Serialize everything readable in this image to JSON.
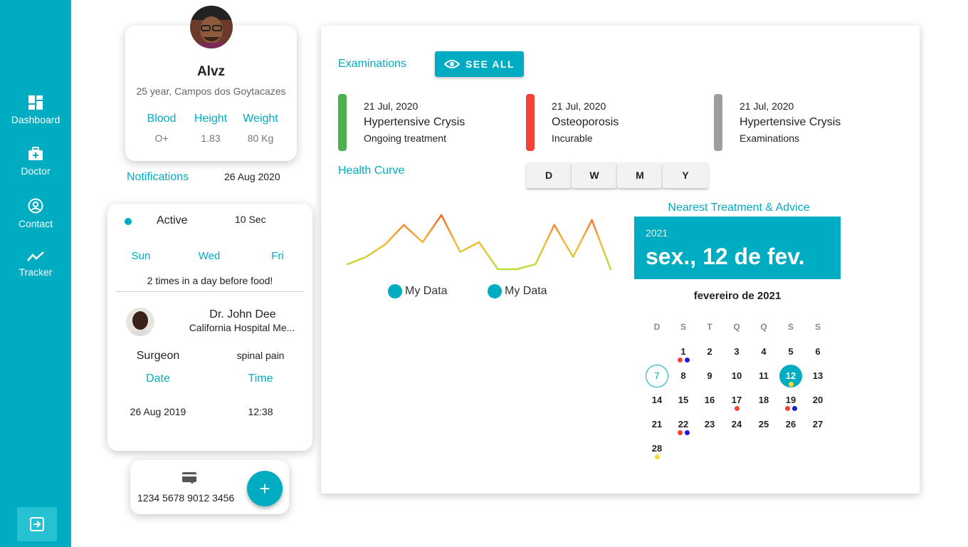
{
  "nav": {
    "dashboard": "Dashboard",
    "doctor": "Doctor",
    "contact": "Contact",
    "tracker": "Tracker"
  },
  "profile": {
    "name": "Alvz",
    "subtitle": "25 year, Campos dos Goytacazes",
    "blood_label": "Blood",
    "blood_value": "O+",
    "height_label": "Height",
    "height_value": "1.83",
    "weight_label": "Weight",
    "weight_value": "80 Kg"
  },
  "notifications": {
    "label": "Notifications",
    "date": "26 Aug 2020"
  },
  "appointment": {
    "status": "Active",
    "time_ago": "10 Sec",
    "days": [
      "Sun",
      "Wed",
      "Fri"
    ],
    "instruction": "2 times in a day before food!",
    "doctor_name": "Dr. John Dee",
    "hospital": "California Hospital Me...",
    "specialty": "Surgeon",
    "reason": "spinal pain",
    "date_label": "Date",
    "time_label": "Time",
    "date_value": "26 Aug 2019",
    "time_value": "12:38"
  },
  "payment": {
    "card_number": "1234 5678 9012 3456",
    "add_symbol": "+"
  },
  "examinations": {
    "label": "Examinations",
    "see_all": "SEE ALL",
    "items": [
      {
        "date": "21 Jul, 2020",
        "title": "Hypertensive Crysis",
        "status": "Ongoing treatment",
        "color": "#4caf50"
      },
      {
        "date": "21 Jul, 2020",
        "title": "Osteoporosis",
        "status": "Incurable",
        "color": "#f44336"
      },
      {
        "date": "21 Jul, 2020",
        "title": "Hypertensive Crysis",
        "status": "Examinations",
        "color": "#9e9e9e"
      }
    ]
  },
  "health_curve": {
    "label": "Health Curve",
    "ranges": [
      "D",
      "W",
      "M",
      "Y"
    ],
    "legend": [
      "My Data",
      "My Data"
    ]
  },
  "chart_data": {
    "type": "line",
    "x": [
      1,
      2,
      3,
      4,
      5,
      6,
      7,
      8,
      9,
      10,
      11,
      12,
      13,
      14,
      15
    ],
    "series": [
      {
        "name": "My Data",
        "values": [
          2,
          5,
          10,
          18,
          11,
          22,
          7,
          11,
          0,
          0,
          2,
          18,
          5,
          20,
          0
        ]
      }
    ],
    "title": "",
    "xlabel": "",
    "ylabel": "",
    "legend_position": "bottom",
    "grid": false
  },
  "treatment": {
    "label": "Nearest Treatment & Advice",
    "year": "2021",
    "date_big": "sex., 12 de fev.",
    "month_title": "fevereiro de 2021",
    "weekdays": [
      "D",
      "S",
      "T",
      "Q",
      "Q",
      "S",
      "S"
    ],
    "days": [
      "1",
      "2",
      "3",
      "4",
      "5",
      "6",
      "7",
      "8",
      "9",
      "10",
      "11",
      "12",
      "13",
      "14",
      "15",
      "16",
      "17",
      "18",
      "19",
      "20",
      "21",
      "22",
      "23",
      "24",
      "25",
      "26",
      "27",
      "28"
    ]
  },
  "colors": {
    "accent": "#00acc1",
    "event_red": "#f44336",
    "event_blue": "#1a1ad8",
    "event_yellow": "#fdd835"
  }
}
